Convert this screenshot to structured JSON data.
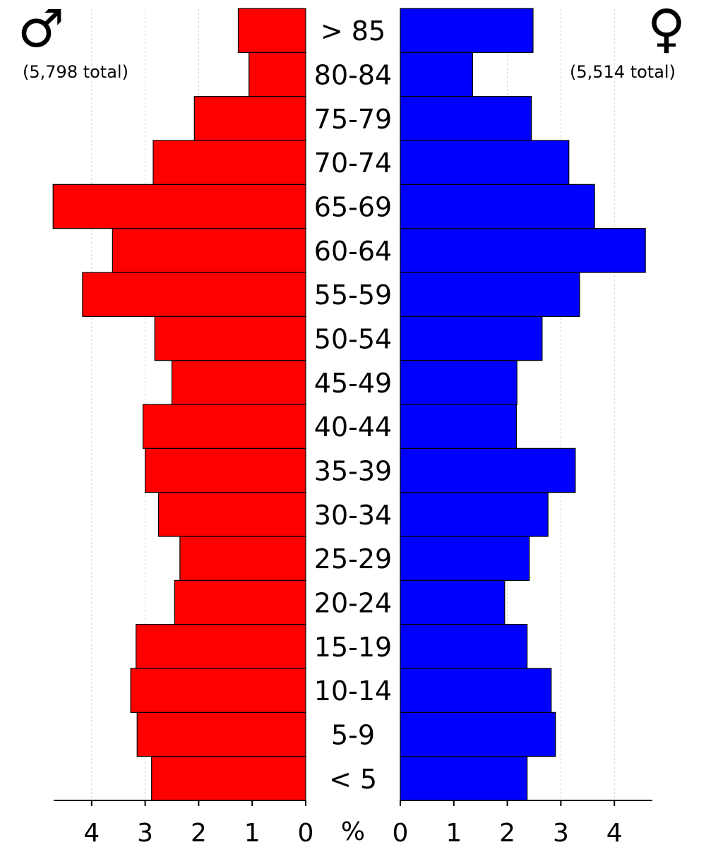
{
  "chart_data": {
    "type": "bar",
    "subtype": "population-pyramid",
    "categories": [
      "< 5",
      "5-9",
      "10-14",
      "15-19",
      "20-24",
      "25-29",
      "30-34",
      "35-39",
      "40-44",
      "45-49",
      "50-54",
      "55-59",
      "60-64",
      "65-69",
      "70-74",
      "75-79",
      "80-84",
      "> 85"
    ],
    "series": [
      {
        "name": "",
        "symbol": "♂",
        "total_label": "(5,798 total)",
        "color": "#ff0000",
        "side": "left",
        "values": [
          2.88,
          3.15,
          3.27,
          3.17,
          2.45,
          2.35,
          2.75,
          3.0,
          3.04,
          2.5,
          2.82,
          4.17,
          3.61,
          4.72,
          2.85,
          2.08,
          1.06,
          1.26
        ]
      },
      {
        "name": "",
        "symbol": "♀",
        "total_label": "(5,514 total)",
        "color": "#0000ff",
        "side": "right",
        "values": [
          2.37,
          2.9,
          2.82,
          2.37,
          1.95,
          2.41,
          2.76,
          3.27,
          2.17,
          2.18,
          2.65,
          3.35,
          4.58,
          3.63,
          3.15,
          2.45,
          1.35,
          2.48
        ]
      }
    ],
    "xlim": [
      0,
      4.7
    ],
    "xticks": [
      0,
      1,
      2,
      3,
      4
    ],
    "xtick_labels": [
      "0",
      "1",
      "2",
      "3",
      "4"
    ],
    "unit_label": "%",
    "grid": true,
    "title": "",
    "xlabel": "",
    "ylabel": ""
  }
}
